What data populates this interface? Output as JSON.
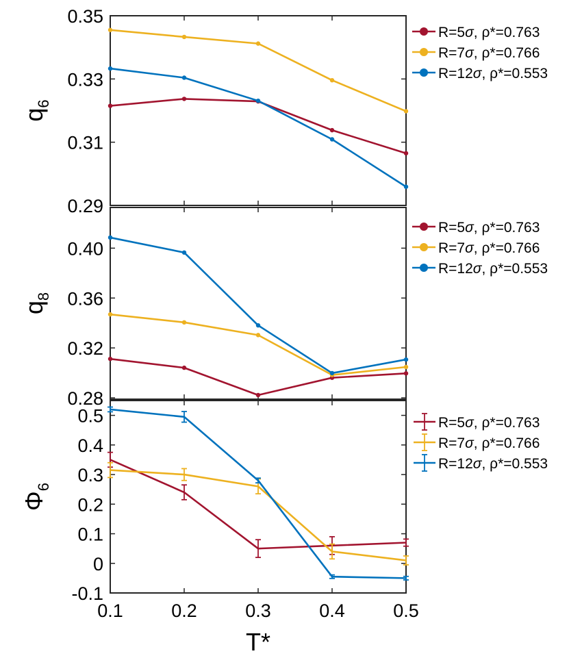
{
  "chart_data": [
    {
      "type": "line",
      "title": "",
      "xlabel": "",
      "ylabel": "q",
      "ylabel_sub": "6",
      "x": [
        0.1,
        0.2,
        0.3,
        0.4,
        0.5
      ],
      "xlim": [
        0.1,
        0.5
      ],
      "ylim": [
        0.29,
        0.35
      ],
      "yticks": [
        0.29,
        0.31,
        0.33,
        0.35
      ],
      "ytick_labels": [
        "0.29",
        "0.31",
        "0.33",
        "0.35"
      ],
      "legend_position": "outside-top-right",
      "error_bars": false,
      "series": [
        {
          "name": "R=5σ, ρ*=0.763",
          "label_r": "R=5",
          "label_rho": "ρ*=0.763",
          "color": "#A2142F",
          "values": [
            0.3215,
            0.3237,
            0.3229,
            0.3138,
            0.3065
          ]
        },
        {
          "name": "R=7σ, ρ*=0.766",
          "label_r": "R=7",
          "label_rho": "ρ*=0.766",
          "color": "#EDB120",
          "values": [
            0.3455,
            0.3433,
            0.3412,
            0.3296,
            0.3198
          ]
        },
        {
          "name": "R=12σ, ρ*=0.553",
          "label_r": "R=12",
          "label_rho": "ρ*=0.553",
          "color": "#0072BD",
          "values": [
            0.3333,
            0.3304,
            0.3231,
            0.3109,
            0.2959
          ]
        }
      ]
    },
    {
      "type": "line",
      "title": "",
      "xlabel": "",
      "ylabel": "q",
      "ylabel_sub": "8",
      "x": [
        0.1,
        0.2,
        0.3,
        0.4,
        0.5
      ],
      "xlim": [
        0.1,
        0.5
      ],
      "ylim": [
        0.28,
        0.42
      ],
      "yticks": [
        0.28,
        0.32,
        0.36,
        0.4
      ],
      "ytick_labels": [
        "0.28",
        "0.32",
        "0.36",
        "0.40"
      ],
      "legend_position": "outside-top-right",
      "error_bars": false,
      "series": [
        {
          "name": "R=5σ, ρ*=0.763",
          "label_r": "R=5",
          "label_rho": "ρ*=0.763",
          "color": "#A2142F",
          "values": [
            0.3112,
            0.3041,
            0.2822,
            0.2961,
            0.2996
          ]
        },
        {
          "name": "R=7σ, ρ*=0.766",
          "label_r": "R=7",
          "label_rho": "ρ*=0.766",
          "color": "#EDB120",
          "values": [
            0.3469,
            0.3405,
            0.3303,
            0.2983,
            0.3047
          ]
        },
        {
          "name": "R=12σ, ρ*=0.553",
          "label_r": "R=12",
          "label_rho": "ρ*=0.553",
          "color": "#0072BD",
          "values": [
            0.4085,
            0.3965,
            0.3381,
            0.2998,
            0.3107
          ]
        }
      ]
    },
    {
      "type": "line",
      "title": "",
      "xlabel": "T*",
      "ylabel": "Φ",
      "ylabel_sub": "6",
      "x": [
        0.1,
        0.2,
        0.3,
        0.4,
        0.5
      ],
      "xlim": [
        0.1,
        0.5
      ],
      "ylim": [
        -0.1,
        0.55
      ],
      "yticks": [
        -0.1,
        0,
        0.1,
        0.2,
        0.3,
        0.4,
        0.5
      ],
      "ytick_labels": [
        "-0.1",
        "0",
        "0.1",
        "0.2",
        "0.3",
        "0.4",
        "0.5"
      ],
      "xticks": [
        0.1,
        0.2,
        0.3,
        0.4,
        0.5
      ],
      "xtick_labels": [
        "0.1",
        "0.2",
        "0.3",
        "0.4",
        "0.5"
      ],
      "legend_position": "outside-top-right",
      "error_bars": true,
      "series": [
        {
          "name": "R=5σ, ρ*=0.763",
          "label_r": "R=5",
          "label_rho": "ρ*=0.763",
          "color": "#A2142F",
          "values": [
            0.35,
            0.24,
            0.05,
            0.06,
            0.07
          ],
          "errors": [
            0.025,
            0.025,
            0.03,
            0.03,
            0.012
          ]
        },
        {
          "name": "R=7σ, ρ*=0.766",
          "label_r": "R=7",
          "label_rho": "ρ*=0.766",
          "color": "#EDB120",
          "values": [
            0.315,
            0.3,
            0.26,
            0.04,
            0.01
          ],
          "errors": [
            0.025,
            0.02,
            0.025,
            0.025,
            0.015
          ]
        },
        {
          "name": "R=12σ, ρ*=0.553",
          "label_r": "R=12",
          "label_rho": "ρ*=0.553",
          "color": "#0072BD",
          "values": [
            0.52,
            0.495,
            0.28,
            -0.045,
            -0.05
          ],
          "errors": [
            0.008,
            0.018,
            0.008,
            0.006,
            0.006
          ]
        }
      ]
    }
  ]
}
